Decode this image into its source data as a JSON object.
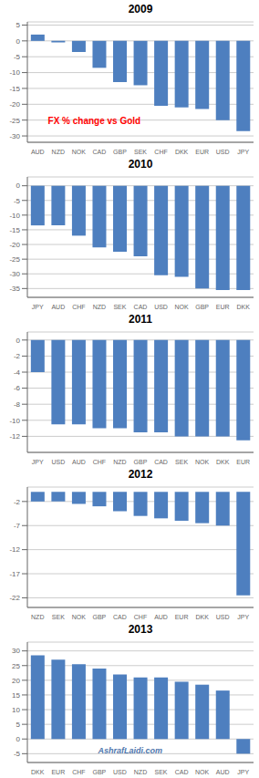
{
  "chart_data": [
    {
      "type": "bar",
      "title": "2009",
      "categories": [
        "AUD",
        "NZD",
        "NOK",
        "CAD",
        "GBP",
        "SEK",
        "CHF",
        "DKK",
        "EUR",
        "USD",
        "JPY"
      ],
      "values": [
        2.0,
        -0.5,
        -3.5,
        -8.5,
        -13.0,
        -14.0,
        -20.5,
        -21.0,
        -21.5,
        -25.0,
        -28.5
      ],
      "color": "#4E7FBF",
      "ylim": [
        -32,
        6
      ],
      "yticks": [
        5,
        0,
        -5,
        -10,
        -15,
        -20,
        -25,
        -30
      ],
      "grid": true,
      "annotations": [
        {
          "text": "FX % change vs Gold",
          "color": "red"
        }
      ]
    },
    {
      "type": "bar",
      "title": "2010",
      "categories": [
        "JPY",
        "AUD",
        "CHF",
        "NZD",
        "SEK",
        "CAD",
        "USD",
        "NOK",
        "GBP",
        "EUR",
        "DKK"
      ],
      "values": [
        -13.5,
        -13.5,
        -17.0,
        -21.0,
        -22.5,
        -24.0,
        -30.5,
        -31.0,
        -35.0,
        -35.5,
        -35.5
      ],
      "color": "#4E7FBF",
      "ylim": [
        -38,
        3
      ],
      "yticks": [
        0,
        -5,
        -10,
        -15,
        -20,
        -25,
        -30,
        -35
      ],
      "grid": true
    },
    {
      "type": "bar",
      "title": "2011",
      "categories": [
        "JPY",
        "USD",
        "AUD",
        "CHF",
        "NZD",
        "GBP",
        "CAD",
        "SEK",
        "NOK",
        "DKK",
        "EUR"
      ],
      "values": [
        -4.0,
        -10.5,
        -10.5,
        -11.0,
        -11.0,
        -11.5,
        -11.5,
        -12.0,
        -12.0,
        -12.0,
        -12.5
      ],
      "color": "#4E7FBF",
      "ylim": [
        -14,
        1
      ],
      "yticks": [
        0,
        -2,
        -4,
        -6,
        -8,
        -10,
        -12
      ],
      "grid": true
    },
    {
      "type": "bar",
      "title": "2012",
      "categories": [
        "NZD",
        "SEK",
        "NOK",
        "GBP",
        "CAD",
        "CHF",
        "AUD",
        "EUR",
        "DKK",
        "USD",
        "JPY"
      ],
      "values": [
        -2.0,
        -2.0,
        -2.5,
        -3.0,
        -4.0,
        -5.0,
        -5.5,
        -6.0,
        -6.5,
        -7.0,
        -21.5
      ],
      "color": "#4E7FBF",
      "ylim": [
        -24,
        1
      ],
      "yticks": [
        -2,
        -7,
        -12,
        -17,
        -22
      ],
      "grid": true
    },
    {
      "type": "bar",
      "title": "2013",
      "categories": [
        "DKK",
        "EUR",
        "CHF",
        "GBP",
        "USD",
        "NZD",
        "SEK",
        "CAD",
        "NOK",
        "AUD",
        "JPY"
      ],
      "values": [
        28.5,
        27.0,
        25.5,
        24.0,
        22.0,
        21.0,
        21.0,
        19.5,
        18.5,
        16.5,
        -5.0
      ],
      "color": "#4E7FBF",
      "ylim": [
        -8,
        33
      ],
      "yticks": [
        30,
        25,
        20,
        15,
        10,
        5,
        0,
        -5
      ],
      "grid": true,
      "annotations": [
        {
          "text": "AshrafLaidi.com",
          "color": "#3060A0"
        }
      ]
    }
  ]
}
